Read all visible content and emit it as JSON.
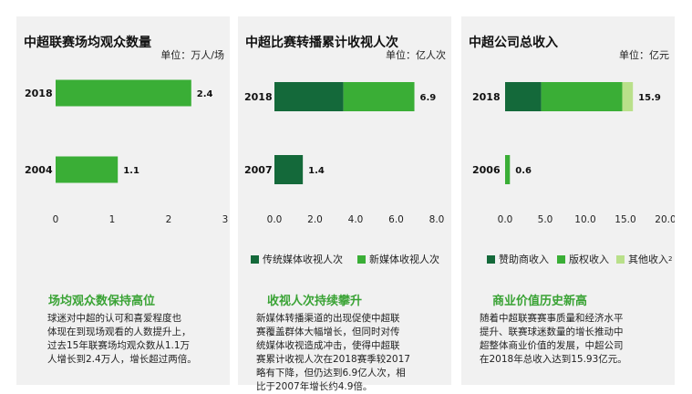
{
  "colors": {
    "dark_green": "#14693a",
    "green": "#3aae36",
    "light_green": "#b9e08a",
    "heading_green": "#3aa335"
  },
  "chart_data": [
    {
      "type": "bar",
      "orientation": "horizontal",
      "title": "中超联赛场均观众数量",
      "unit": "单位：万人/场",
      "categories": [
        "2018",
        "2004"
      ],
      "values": [
        2.4,
        1.1
      ],
      "value_labels": [
        "2.4",
        "1.1"
      ],
      "xlim": [
        0,
        3
      ],
      "ticks": [
        "0",
        "1",
        "2",
        "3"
      ],
      "grid": false
    },
    {
      "type": "bar",
      "orientation": "horizontal",
      "stacked": true,
      "title": "中超比赛转播累计收视人次",
      "unit": "单位：亿人次",
      "categories": [
        "2018",
        "2007"
      ],
      "series": [
        {
          "name": "传统媒体收视人次",
          "values": [
            3.4,
            1.4
          ]
        },
        {
          "name": "新媒体收视人次",
          "values": [
            3.5,
            0
          ]
        }
      ],
      "value_labels": [
        "6.9",
        "1.4"
      ],
      "xlim": [
        0,
        8
      ],
      "ticks": [
        "0.0",
        "2.0",
        "4.0",
        "6.0",
        "8.0"
      ],
      "legend": "bottom",
      "grid": false
    },
    {
      "type": "bar",
      "orientation": "horizontal",
      "stacked": true,
      "title": "中超公司总收入",
      "unit": "单位：亿元",
      "categories": [
        "2018",
        "2006"
      ],
      "series": [
        {
          "name": "赞助商收入",
          "values": [
            4.5,
            0
          ]
        },
        {
          "name": "版权收入",
          "values": [
            10.1,
            0.6
          ]
        },
        {
          "name": "其他收入",
          "values": [
            1.33,
            0
          ]
        }
      ],
      "legend_sup": "2",
      "value_labels": [
        "15.9",
        "0.6"
      ],
      "xlim": [
        0,
        20
      ],
      "ticks": [
        "0.0",
        "5.0",
        "10.0",
        "15.0",
        "20.0"
      ],
      "legend": "bottom",
      "grid": false
    }
  ],
  "texts": [
    {
      "heading": "场均观众数保持高位",
      "body": "球迷对中超的认可和喜爱程度也\n体现在到现场观看的人数提升上，\n过去15年联赛场均观众数从1.1万\n人增长到2.4万人，增长超过两倍。"
    },
    {
      "heading": "收视人次持续攀升",
      "body": "新媒体转播渠道的出现促使中超联\n赛覆盖群体大幅增长，但同时对传\n统媒体收视造成冲击，使得中超联\n赛累计收视人次在2018赛季较2017\n略有下降，但仍达到6.9亿人次，相\n比于2007年增长约4.9倍。"
    },
    {
      "heading": "商业价值历史新高",
      "body": "随着中超联赛赛事质量和经济水平\n提升、联赛球迷数量的增长推动中\n超整体商业价值的发展，中超公司\n在2018年总收入达到15.93亿元。"
    }
  ]
}
